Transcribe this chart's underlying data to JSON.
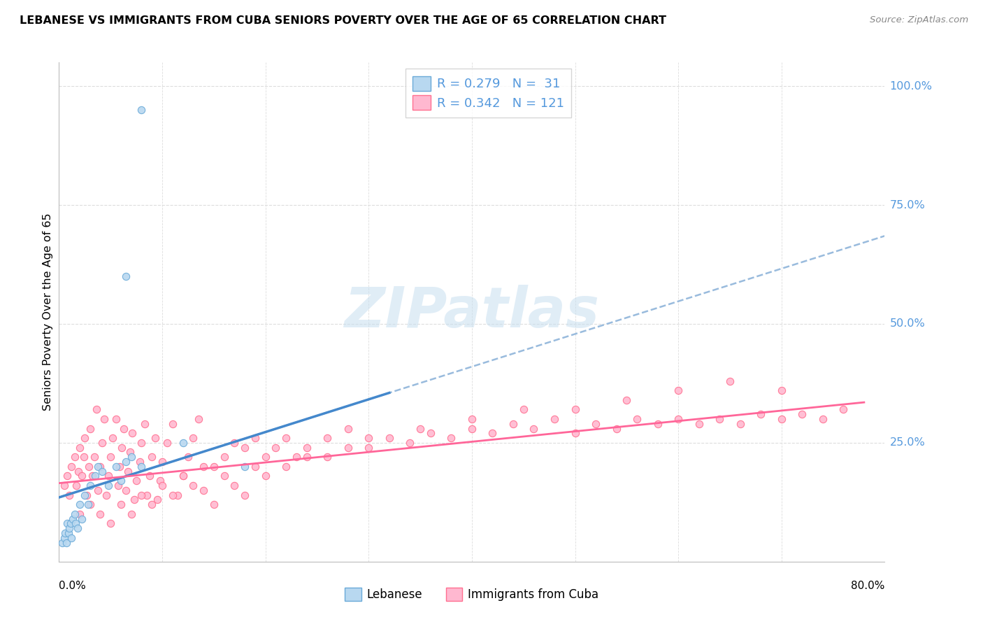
{
  "title": "LEBANESE VS IMMIGRANTS FROM CUBA SENIORS POVERTY OVER THE AGE OF 65 CORRELATION CHART",
  "source": "Source: ZipAtlas.com",
  "ylabel": "Seniors Poverty Over the Age of 65",
  "right_ytick_labels": [
    "100.0%",
    "75.0%",
    "50.0%",
    "25.0%"
  ],
  "right_ytick_values": [
    1.0,
    0.75,
    0.5,
    0.25
  ],
  "xmin": 0.0,
  "xmax": 0.8,
  "ymin": 0.0,
  "ymax": 1.05,
  "color_lebanese_fill": "#B8D8F0",
  "color_lebanese_edge": "#6AAAD8",
  "color_cuba_fill": "#FFB8D0",
  "color_cuba_edge": "#FF7090",
  "color_line_lebanese": "#4488CC",
  "color_line_cuba": "#FF6699",
  "color_dashed": "#99BBDD",
  "color_grid": "#DDDDDD",
  "color_rtick": "#5599DD",
  "watermark_color": "#C8DFF0",
  "leb_line_x0": 0.0,
  "leb_line_y0": 0.135,
  "leb_line_x1": 0.32,
  "leb_line_y1": 0.355,
  "dash_line_x0": 0.0,
  "dash_line_x1": 0.8,
  "cuba_line_x0": 0.0,
  "cuba_line_y0": 0.165,
  "cuba_line_x1": 0.78,
  "cuba_line_y1": 0.335,
  "leb_x": [
    0.003,
    0.005,
    0.006,
    0.007,
    0.008,
    0.009,
    0.01,
    0.011,
    0.012,
    0.013,
    0.015,
    0.016,
    0.018,
    0.02,
    0.022,
    0.025,
    0.028,
    0.03,
    0.035,
    0.038,
    0.042,
    0.048,
    0.055,
    0.06,
    0.065,
    0.07,
    0.08,
    0.12,
    0.18,
    0.065,
    0.08
  ],
  "leb_y": [
    0.04,
    0.05,
    0.06,
    0.04,
    0.08,
    0.06,
    0.07,
    0.08,
    0.05,
    0.09,
    0.1,
    0.08,
    0.07,
    0.12,
    0.09,
    0.14,
    0.12,
    0.16,
    0.18,
    0.2,
    0.19,
    0.16,
    0.2,
    0.17,
    0.21,
    0.22,
    0.2,
    0.25,
    0.2,
    0.6,
    0.95
  ],
  "cuba_x": [
    0.005,
    0.008,
    0.01,
    0.012,
    0.015,
    0.017,
    0.019,
    0.02,
    0.022,
    0.024,
    0.025,
    0.027,
    0.029,
    0.03,
    0.032,
    0.034,
    0.036,
    0.038,
    0.04,
    0.042,
    0.044,
    0.046,
    0.048,
    0.05,
    0.052,
    0.055,
    0.057,
    0.059,
    0.061,
    0.063,
    0.065,
    0.067,
    0.069,
    0.071,
    0.073,
    0.075,
    0.078,
    0.08,
    0.083,
    0.085,
    0.088,
    0.09,
    0.093,
    0.095,
    0.098,
    0.1,
    0.105,
    0.11,
    0.115,
    0.12,
    0.125,
    0.13,
    0.135,
    0.14,
    0.15,
    0.16,
    0.17,
    0.18,
    0.19,
    0.2,
    0.21,
    0.22,
    0.23,
    0.24,
    0.26,
    0.28,
    0.3,
    0.32,
    0.34,
    0.36,
    0.38,
    0.4,
    0.42,
    0.44,
    0.46,
    0.48,
    0.5,
    0.52,
    0.54,
    0.56,
    0.58,
    0.6,
    0.62,
    0.64,
    0.66,
    0.68,
    0.7,
    0.72,
    0.74,
    0.76,
    0.02,
    0.03,
    0.04,
    0.05,
    0.06,
    0.07,
    0.08,
    0.09,
    0.1,
    0.11,
    0.12,
    0.13,
    0.14,
    0.15,
    0.16,
    0.17,
    0.18,
    0.19,
    0.2,
    0.22,
    0.24,
    0.26,
    0.28,
    0.3,
    0.35,
    0.4,
    0.45,
    0.5,
    0.55,
    0.6,
    0.65,
    0.7
  ],
  "cuba_y": [
    0.16,
    0.18,
    0.14,
    0.2,
    0.22,
    0.16,
    0.19,
    0.24,
    0.18,
    0.22,
    0.26,
    0.14,
    0.2,
    0.28,
    0.18,
    0.22,
    0.32,
    0.15,
    0.2,
    0.25,
    0.3,
    0.14,
    0.18,
    0.22,
    0.26,
    0.3,
    0.16,
    0.2,
    0.24,
    0.28,
    0.15,
    0.19,
    0.23,
    0.27,
    0.13,
    0.17,
    0.21,
    0.25,
    0.29,
    0.14,
    0.18,
    0.22,
    0.26,
    0.13,
    0.17,
    0.21,
    0.25,
    0.29,
    0.14,
    0.18,
    0.22,
    0.26,
    0.3,
    0.15,
    0.2,
    0.22,
    0.25,
    0.24,
    0.26,
    0.22,
    0.24,
    0.26,
    0.22,
    0.24,
    0.26,
    0.28,
    0.24,
    0.26,
    0.25,
    0.27,
    0.26,
    0.28,
    0.27,
    0.29,
    0.28,
    0.3,
    0.27,
    0.29,
    0.28,
    0.3,
    0.29,
    0.3,
    0.29,
    0.3,
    0.29,
    0.31,
    0.3,
    0.31,
    0.3,
    0.32,
    0.1,
    0.12,
    0.1,
    0.08,
    0.12,
    0.1,
    0.14,
    0.12,
    0.16,
    0.14,
    0.18,
    0.16,
    0.2,
    0.12,
    0.18,
    0.16,
    0.14,
    0.2,
    0.18,
    0.2,
    0.22,
    0.22,
    0.24,
    0.26,
    0.28,
    0.3,
    0.32,
    0.32,
    0.34,
    0.36,
    0.38,
    0.36
  ]
}
